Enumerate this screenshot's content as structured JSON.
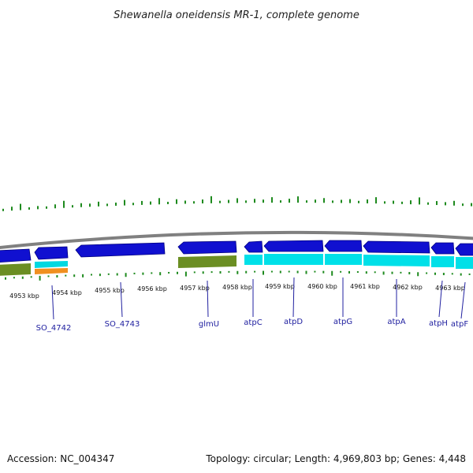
{
  "title": "Shewanella oneidensis MR-1, complete genome",
  "footer": {
    "accession": "Accession: NC_004347",
    "summary": "Topology: circular; Length: 4,969,803 bp; Genes: 4,448"
  },
  "colors": {
    "forward_gene": "#1010d0",
    "reverse_rna": "#00d8e0",
    "olive_feature": "#6b8e23",
    "orange_feature": "#f09020",
    "tick_green": "#1e8a1e",
    "backbone": "#808080",
    "label_line": "#2020a0"
  },
  "kbp_ticks": [
    "4953 kbp",
    "4954 kbp",
    "4955 kbp",
    "4956 kbp",
    "4957 kbp",
    "4958 kbp",
    "4959 kbp",
    "4960 kbp",
    "4961 kbp",
    "4962 kbp",
    "4963 kbp"
  ],
  "genes": [
    {
      "name": "SO_4742"
    },
    {
      "name": "SO_4743"
    },
    {
      "name": "glmU"
    },
    {
      "name": "atpC"
    },
    {
      "name": "atpD"
    },
    {
      "name": "atpG"
    },
    {
      "name": "atpA"
    },
    {
      "name": "atpH"
    },
    {
      "name": "atpF"
    }
  ]
}
